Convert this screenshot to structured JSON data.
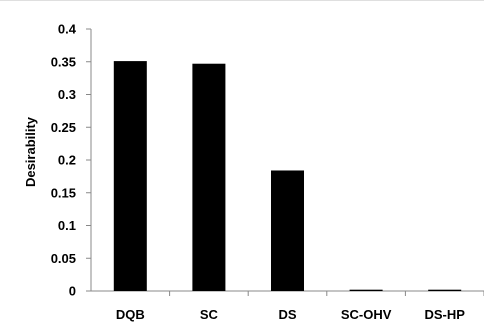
{
  "chart_data": {
    "type": "bar",
    "categories": [
      "DQB",
      "SC",
      "DS",
      "SC-OHV",
      "DS-HP"
    ],
    "values": [
      0.351,
      0.347,
      0.184,
      0.002,
      0.002
    ],
    "title": "",
    "xlabel": "",
    "ylabel": "Desirability",
    "ylim": [
      0,
      0.4
    ],
    "yticks": [
      "0",
      "0.05",
      "0.1",
      "0.15",
      "0.2",
      "0.25",
      "0.3",
      "0.35",
      "0.4"
    ],
    "grid": false,
    "legend": "none",
    "bar_color": "#000000",
    "axis_color": "#888888"
  }
}
